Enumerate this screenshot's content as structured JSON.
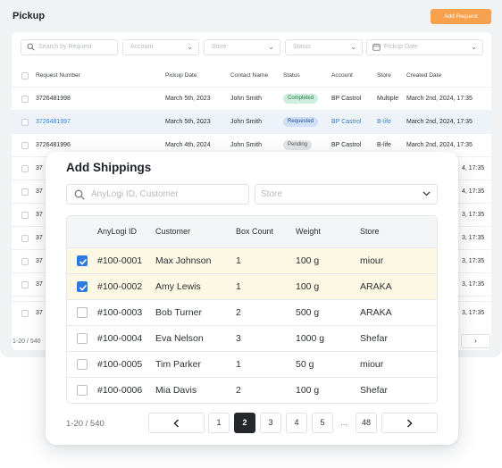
{
  "pickup": {
    "title": "Pickup",
    "add_button": "Add Request",
    "filters": {
      "search_placeholder": "Search by Request",
      "account": "Account",
      "store": "Store",
      "status": "Status",
      "pickup_date": "Pickup Date"
    },
    "columns": [
      "Request Number",
      "Pickup Date",
      "Contact Name",
      "Status",
      "Account",
      "Store",
      "Created Date"
    ],
    "rows": [
      {
        "number": "3726481998",
        "pickup_date": "March 5th, 2023",
        "contact": "John Smith",
        "status": "Completed",
        "account": "BP Castrol",
        "store": "Multiple",
        "created": "March 2nd, 2024, 17:35"
      },
      {
        "number": "3726481997",
        "pickup_date": "March 5th, 2023",
        "contact": "John Smith",
        "status": "Requested",
        "account": "BP Castrol",
        "store": "B-life",
        "created": "March 2nd, 2024, 17:35"
      },
      {
        "number": "3726481996",
        "pickup_date": "March 4th, 2024",
        "contact": "John Smith",
        "status": "Pending",
        "account": "BP Castrol",
        "store": "B-life",
        "created": "March 2nd, 2024, 17:35"
      }
    ],
    "partial_rows": [
      {
        "left": "37",
        "right": "4, 17:35"
      },
      {
        "left": "37",
        "right": "4, 17:35"
      },
      {
        "left": "37",
        "right": "3, 17:35"
      },
      {
        "left": "37",
        "right": "3, 17:35"
      },
      {
        "left": "37",
        "right": "3, 17:35"
      },
      {
        "left": "37",
        "right": "3, 17:35"
      },
      {
        "left": "37",
        "right": "3, 17:35"
      },
      {
        "left": "37",
        "right": "3, 17:35"
      }
    ],
    "footer": "1-20 / 540",
    "next_label": "›"
  },
  "modal": {
    "title": "Add Shippings",
    "search_placeholder": "AnyLogi ID, Customer",
    "store_placeholder": "Store",
    "columns": {
      "id": "AnyLogi ID",
      "customer": "Customer",
      "box_count": "Box Count",
      "weight": "Weight",
      "store": "Store"
    },
    "rows": [
      {
        "id": "#100-0001",
        "customer": "Max Johnson",
        "box_count": "1",
        "weight": "100 g",
        "store": "miour",
        "checked": true
      },
      {
        "id": "#100-0002",
        "customer": "Amy Lewis",
        "box_count": "1",
        "weight": "100 g",
        "store": "ARAKA",
        "checked": true
      },
      {
        "id": "#100-0003",
        "customer": "Bob Turner",
        "box_count": "2",
        "weight": "500 g",
        "store": "ARAKA",
        "checked": false
      },
      {
        "id": "#100-0004",
        "customer": "Eva Nelson",
        "box_count": "3",
        "weight": "1000 g",
        "store": "Shefar",
        "checked": false
      },
      {
        "id": "#100-0005",
        "customer": "Tim Parker",
        "box_count": "1",
        "weight": "50 g",
        "store": "miour",
        "checked": false
      },
      {
        "id": "#100-0006",
        "customer": "Mia Davis",
        "box_count": "2",
        "weight": "100 g",
        "store": "Shefar",
        "checked": false
      }
    ],
    "footer": "1-20 / 540",
    "pagination": {
      "pages": [
        "1",
        "2",
        "3",
        "4",
        "5"
      ],
      "current": "2",
      "ellipsis": "...",
      "last": "48"
    }
  },
  "colors": {
    "accent_orange": "#f7a04e",
    "checkbox_blue": "#2d7be0",
    "selected_row": "#fdf8e3",
    "active_page": "#24282d"
  }
}
